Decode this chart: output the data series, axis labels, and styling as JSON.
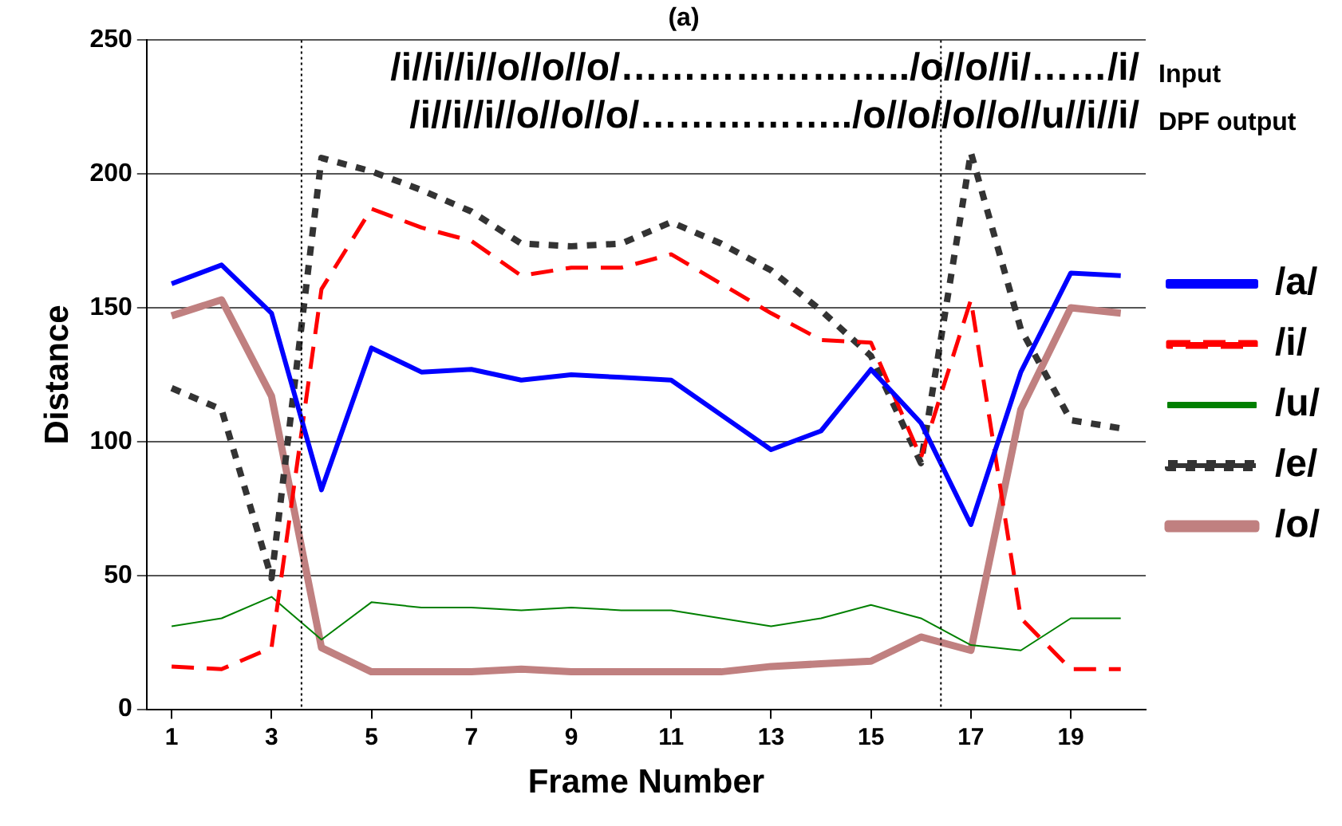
{
  "chart_data": {
    "type": "line",
    "title": "(a)",
    "xlabel": "Frame Number",
    "ylabel": "Distance",
    "x": [
      1,
      2,
      3,
      4,
      5,
      6,
      7,
      8,
      9,
      10,
      11,
      12,
      13,
      14,
      15,
      16,
      17,
      18,
      19,
      20
    ],
    "xlim": [
      0.5,
      20.5
    ],
    "xticks": [
      1,
      3,
      5,
      7,
      9,
      11,
      13,
      15,
      17,
      19
    ],
    "ylim": [
      0,
      250
    ],
    "yticks": [
      0,
      50,
      100,
      150,
      200,
      250
    ],
    "grid": "y",
    "legend": "right",
    "marker": "none",
    "series": [
      {
        "name": "/a/",
        "color": "#0000ff",
        "line_style": "solid",
        "values": [
          159,
          166,
          148,
          82,
          135,
          126,
          127,
          123,
          125,
          124,
          123,
          110,
          97,
          104,
          127,
          107,
          69,
          126,
          163,
          162
        ]
      },
      {
        "name": "/i/",
        "color": "#ff0000",
        "line_style": "dashed",
        "values": [
          16,
          15,
          23,
          157,
          187,
          180,
          175,
          162,
          165,
          165,
          170,
          159,
          148,
          138,
          137,
          94,
          153,
          34,
          15,
          15
        ]
      },
      {
        "name": "/u/",
        "color": "#008000",
        "line_style": "solid",
        "values": [
          31,
          34,
          42,
          26,
          40,
          38,
          38,
          37,
          38,
          37,
          37,
          34,
          31,
          34,
          39,
          34,
          24,
          22,
          34,
          34
        ]
      },
      {
        "name": "/e/",
        "color": "#333333",
        "line_style": "dotted",
        "values": [
          120,
          112,
          49,
          206,
          201,
          194,
          186,
          174,
          173,
          174,
          182,
          174,
          164,
          149,
          132,
          92,
          208,
          142,
          108,
          105
        ]
      },
      {
        "name": "/o/",
        "color": "#c08080",
        "line_style": "solid",
        "values": [
          147,
          153,
          117,
          23,
          14,
          14,
          14,
          15,
          14,
          14,
          14,
          14,
          16,
          17,
          18,
          27,
          22,
          112,
          150,
          148
        ]
      }
    ],
    "ref_lines": [
      {
        "axis": "x",
        "value": 3.6,
        "color": "#000000",
        "line_style": "dotted"
      },
      {
        "axis": "x",
        "value": 16.4,
        "color": "#000000",
        "line_style": "dotted"
      }
    ],
    "annotations": [
      "/i//i//i//o//o//o/…………………../o//o//i/……/i/",
      "/i//i//i//o//o//o/……………../o//o//o//o//u//i//i/",
      "Input",
      "DPF output"
    ]
  }
}
